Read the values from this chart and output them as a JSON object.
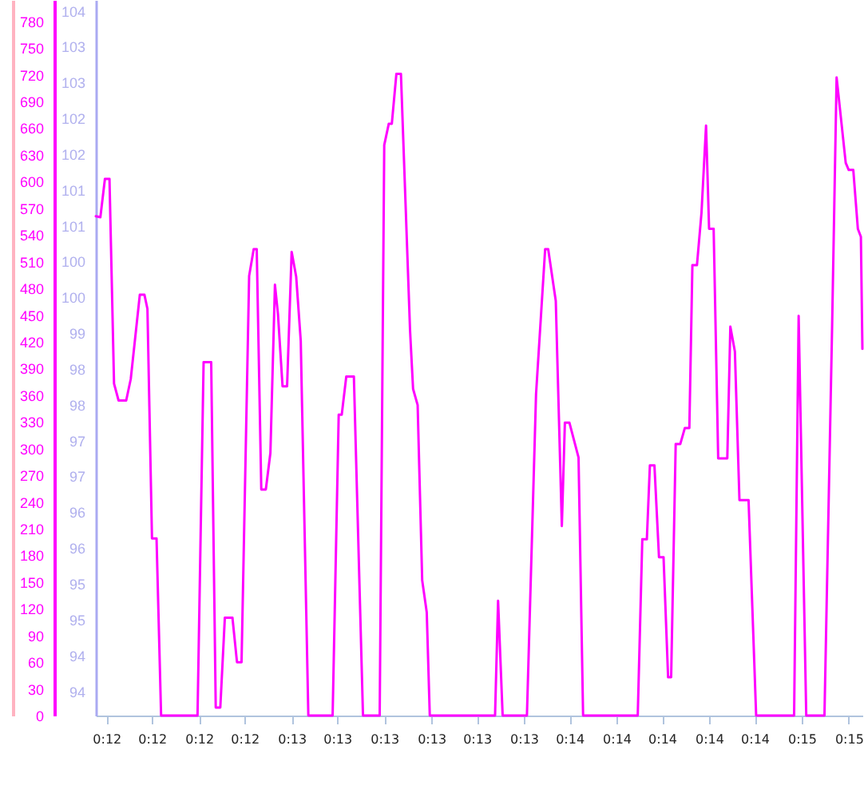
{
  "chart_data": {
    "type": "line",
    "x": [
      0.196,
      0.1963,
      0.1966,
      0.1969,
      0.1972,
      0.1975,
      0.198,
      0.1983,
      0.1989,
      0.1992,
      0.1994,
      0.1997,
      0.2,
      0.2003,
      0.2027,
      0.2031,
      0.2036,
      0.2039,
      0.2042,
      0.2045,
      0.205,
      0.2053,
      0.2056,
      0.2061,
      0.2064,
      0.2066,
      0.2069,
      0.2072,
      0.2075,
      0.2078,
      0.208,
      0.2083,
      0.2086,
      0.2089,
      0.2092,
      0.2095,
      0.21,
      0.2116,
      0.212,
      0.2122,
      0.2125,
      0.213,
      0.2136,
      0.2147,
      0.215,
      0.2153,
      0.2155,
      0.2158,
      0.2161,
      0.2167,
      0.2169,
      0.2172,
      0.2175,
      0.2178,
      0.218,
      0.2223,
      0.2225,
      0.2228,
      0.2244,
      0.225,
      0.2256,
      0.2258,
      0.2263,
      0.2267,
      0.2269,
      0.2272,
      0.2278,
      0.2281,
      0.2317,
      0.232,
      0.2323,
      0.2325,
      0.2328,
      0.2331,
      0.2334,
      0.2337,
      0.2339,
      0.2342,
      0.2345,
      0.2348,
      0.2351,
      0.2353,
      0.2356,
      0.2359,
      0.2362,
      0.2364,
      0.2367,
      0.237,
      0.2376,
      0.2378,
      0.2381,
      0.2384,
      0.239,
      0.2395,
      0.242,
      0.2423,
      0.2428,
      0.244,
      0.2445,
      0.2448,
      0.2454,
      0.2456,
      0.2459,
      0.2462,
      0.2464,
      0.2465
    ],
    "series": [
      {
        "color": "#ff00ff",
        "values": [
          561,
          560,
          603,
          603,
          373,
          354,
          354,
          378,
          473,
          473,
          457,
          199,
          199,
          0,
          0,
          397,
          397,
          9,
          9,
          110,
          110,
          60,
          60,
          494,
          524,
          524,
          254,
          254,
          295,
          484,
          451,
          370,
          370,
          521,
          493,
          421,
          0,
          0,
          338,
          338,
          381,
          381,
          0,
          0,
          641,
          665,
          665,
          721,
          721,
          433,
          367,
          349,
          152,
          116,
          0,
          0,
          129,
          0,
          0,
          361,
          524,
          524,
          466,
          213,
          329,
          329,
          290,
          0,
          0,
          198,
          198,
          281,
          281,
          178,
          178,
          43,
          43,
          305,
          305,
          323,
          323,
          506,
          506,
          565,
          663,
          547,
          547,
          289,
          289,
          437,
          409,
          242,
          242,
          0,
          0,
          449,
          0,
          0,
          433,
          717,
          621,
          613,
          613,
          547,
          538,
          412
        ]
      }
    ],
    "xlim": [
      0.196,
      0.2465
    ],
    "xticks": [
      {
        "value": 0.1967,
        "label": "0:12"
      },
      {
        "value": 0.1997,
        "label": "0:12"
      },
      {
        "value": 0.2028,
        "label": "0:12"
      },
      {
        "value": 0.2058,
        "label": "0:12"
      },
      {
        "value": 0.2089,
        "label": "0:13"
      },
      {
        "value": 0.2119,
        "label": "0:13"
      },
      {
        "value": 0.215,
        "label": "0:13"
      },
      {
        "value": 0.2181,
        "label": "0:13"
      },
      {
        "value": 0.2211,
        "label": "0:13"
      },
      {
        "value": 0.2242,
        "label": "0:13"
      },
      {
        "value": 0.2272,
        "label": "0:14"
      },
      {
        "value": 0.2303,
        "label": "0:14"
      },
      {
        "value": 0.2333,
        "label": "0:14"
      },
      {
        "value": 0.2364,
        "label": "0:14"
      },
      {
        "value": 0.2394,
        "label": "0:14"
      },
      {
        "value": 0.2425,
        "label": "0:15"
      },
      {
        "value": 0.2456,
        "label": "0:15"
      }
    ],
    "ylim": [
      0,
      804
    ],
    "yticks": [
      0,
      30,
      60,
      90,
      120,
      150,
      180,
      210,
      240,
      270,
      300,
      330,
      360,
      390,
      420,
      450,
      480,
      510,
      540,
      570,
      600,
      630,
      660,
      690,
      720,
      750,
      780
    ],
    "y2lim": [
      93.34,
      103.93
    ],
    "y2ticks": [
      {
        "value": 93.7,
        "label": "94"
      },
      {
        "value": 94.23,
        "label": "94"
      },
      {
        "value": 94.76,
        "label": "95"
      },
      {
        "value": 95.29,
        "label": "95"
      },
      {
        "value": 95.82,
        "label": "96"
      },
      {
        "value": 96.35,
        "label": "96"
      },
      {
        "value": 96.88,
        "label": "97"
      },
      {
        "value": 97.41,
        "label": "97"
      },
      {
        "value": 97.94,
        "label": "98"
      },
      {
        "value": 98.47,
        "label": "98"
      },
      {
        "value": 99.0,
        "label": "99"
      },
      {
        "value": 99.53,
        "label": "100"
      },
      {
        "value": 100.06,
        "label": "100"
      },
      {
        "value": 100.59,
        "label": "101"
      },
      {
        "value": 101.12,
        "label": "101"
      },
      {
        "value": 101.65,
        "label": "102"
      },
      {
        "value": 102.18,
        "label": "102"
      },
      {
        "value": 102.71,
        "label": "103"
      },
      {
        "value": 103.24,
        "label": "103"
      },
      {
        "value": 103.77,
        "label": "104"
      }
    ],
    "line_style": "solid"
  }
}
